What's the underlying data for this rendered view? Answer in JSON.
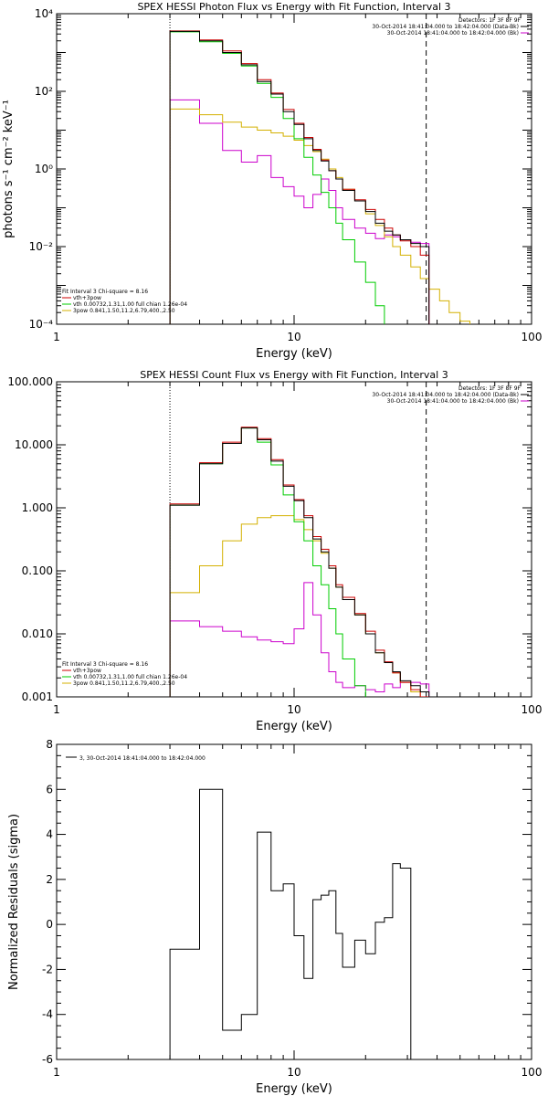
{
  "colors": {
    "axes": "#000000",
    "data": "#000000",
    "thermal": "#00cc00",
    "nonthermal": "#d4b000",
    "total": "#cc0000",
    "background": "#cc00cc"
  },
  "chart_data": [
    {
      "type": "line",
      "title": "SPEX HESSI Photon Flux vs Energy with Fit Function, Interval 3",
      "xlabel": "Energy (keV)",
      "ylabel": "photons s⁻¹ cm⁻² keV⁻¹",
      "xscale": "log",
      "yscale": "log",
      "xlim": [
        1,
        100
      ],
      "ylim": [
        0.0001,
        10000
      ],
      "xticks": [
        {
          "v": 1,
          "label": "1"
        },
        {
          "v": 10,
          "label": "10"
        },
        {
          "v": 100,
          "label": "100"
        }
      ],
      "yticks": [
        {
          "v": 0.0001,
          "label": "10⁻⁴"
        },
        {
          "v": 0.01,
          "label": "10⁻²"
        },
        {
          "v": 1,
          "label": "10⁰"
        },
        {
          "v": 100,
          "label": "10²"
        },
        {
          "v": 10000,
          "label": "10⁴"
        }
      ],
      "vlines": {
        "dotted": 3,
        "dashed": 36
      },
      "bin_edges": [
        3,
        4,
        5,
        6,
        7,
        8,
        9,
        10,
        11,
        12,
        13,
        14,
        15,
        16,
        18,
        20,
        22,
        24,
        26,
        28,
        31,
        34,
        37,
        41,
        45,
        50,
        55,
        60
      ],
      "legend_top": {
        "header": "Detectors: 1F 3F 8F 9F",
        "entries": [
          {
            "label": "30-Oct-2014 18:41:04.000 to 18:42:04.000 (Data-Bk)",
            "color": "#000000"
          },
          {
            "label": "30-Oct-2014 18:41:04.000 to 18:42:04.000 (Bk)",
            "color": "#cc00cc"
          }
        ]
      },
      "legend_bottom": {
        "header": "Fit Interval 3   Chi-square = 8.16",
        "entries": [
          {
            "label": "vth+3pow",
            "color": "#cc0000"
          },
          {
            "label": "vth 0.00732,1.31,1.00   full chian 1.26e-04",
            "color": "#00cc00"
          },
          {
            "label": "3pow 0.841,1.50,11.2,6.79,400.,2.50",
            "color": "#d4b000"
          }
        ]
      },
      "series": [
        {
          "name": "Data-Bk",
          "color": "#000000",
          "values": [
            3500,
            2000,
            1000,
            480,
            180,
            85,
            30,
            14,
            6,
            3,
            1.6,
            0.9,
            0.55,
            0.28,
            0.15,
            0.08,
            0.04,
            0.025,
            0.02,
            0.015,
            0.012,
            0.01
          ]
        },
        {
          "name": "vth+3pow",
          "color": "#cc0000",
          "values": [
            3600,
            2100,
            1100,
            520,
            200,
            90,
            34,
            15,
            6.5,
            3.2,
            1.7,
            0.9,
            0.55,
            0.3,
            0.16,
            0.09,
            0.05,
            0.03,
            0.02,
            0.014,
            0.01,
            0.006
          ]
        },
        {
          "name": "vth",
          "color": "#00cc00",
          "values": [
            3400,
            1900,
            950,
            450,
            160,
            70,
            20,
            6,
            2,
            0.7,
            0.25,
            0.1,
            0.04,
            0.015,
            0.004,
            0.0012,
            0.0003,
            8e-05
          ]
        },
        {
          "name": "3pow",
          "color": "#d4b000",
          "values": [
            35,
            25,
            16,
            12,
            10,
            8.5,
            7,
            5.5,
            4,
            2.8,
            1.8,
            1,
            0.6,
            0.3,
            0.15,
            0.07,
            0.035,
            0.018,
            0.01,
            0.006,
            0.003,
            0.0015,
            0.0008,
            0.0004,
            0.0002,
            0.00012,
            7e-05
          ]
        },
        {
          "name": "Bk",
          "color": "#cc00cc",
          "values": [
            60,
            15,
            3,
            1.5,
            2.2,
            0.6,
            0.35,
            0.2,
            0.1,
            0.22,
            0.55,
            0.28,
            0.1,
            0.05,
            0.03,
            0.022,
            0.016,
            0.02,
            0.018,
            0.015,
            0.013,
            0.012
          ]
        }
      ]
    },
    {
      "type": "line",
      "title": "SPEX HESSI Count Flux vs Energy with Fit Function, Interval 3",
      "xlabel": "Energy (keV)",
      "ylabel": "",
      "xscale": "log",
      "yscale": "log",
      "xlim": [
        1,
        100
      ],
      "ylim": [
        0.001,
        100
      ],
      "xticks": [
        {
          "v": 1,
          "label": "1"
        },
        {
          "v": 10,
          "label": "10"
        },
        {
          "v": 100,
          "label": "100"
        }
      ],
      "yticks": [
        {
          "v": 0.001,
          "label": "0.001"
        },
        {
          "v": 0.01,
          "label": "0.010"
        },
        {
          "v": 0.1,
          "label": "0.100"
        },
        {
          "v": 1,
          "label": "1.000"
        },
        {
          "v": 10,
          "label": "10.000"
        },
        {
          "v": 100,
          "label": "100.000"
        }
      ],
      "vlines": {
        "dotted": 3,
        "dashed": 36
      },
      "bin_edges": [
        3,
        4,
        5,
        6,
        7,
        8,
        9,
        10,
        11,
        12,
        13,
        14,
        15,
        16,
        18,
        20,
        22,
        24,
        26,
        28,
        31,
        34,
        37
      ],
      "legend_top": {
        "header": "Detectors: 1F 3F 8F 9F",
        "entries": [
          {
            "label": "30-Oct-2014 18:41:04.000 to 18:42:04.000 (Data-Bk)",
            "color": "#000000"
          },
          {
            "label": "30-Oct-2014 18:41:04.000 to 18:42:04.000 (Bk)",
            "color": "#cc00cc"
          }
        ]
      },
      "legend_bottom": {
        "header": "Fit Interval 3   Chi-square = 8.16",
        "entries": [
          {
            "label": "vth+3pow",
            "color": "#cc0000"
          },
          {
            "label": "vth 0.00732,1.31,1.00   full chian 1.26e-04",
            "color": "#00cc00"
          },
          {
            "label": "3pow 0.841,1.50,11.2,6.79,400.,2.50",
            "color": "#d4b000"
          }
        ]
      },
      "series": [
        {
          "name": "Data-Bk",
          "color": "#000000",
          "values": [
            1.1,
            5,
            10.5,
            18.5,
            12,
            5.5,
            2.2,
            1.3,
            0.7,
            0.32,
            0.2,
            0.11,
            0.055,
            0.035,
            0.02,
            0.01,
            0.005,
            0.0035,
            0.0025,
            0.0018,
            0.0015,
            0.0012
          ]
        },
        {
          "name": "vth+3pow",
          "color": "#cc0000",
          "values": [
            1.15,
            5.2,
            11,
            19,
            12.5,
            5.8,
            2.3,
            1.35,
            0.75,
            0.35,
            0.22,
            0.12,
            0.06,
            0.038,
            0.021,
            0.011,
            0.0055,
            0.0036,
            0.0024,
            0.0017,
            0.0013,
            0.001
          ]
        },
        {
          "name": "vth",
          "color": "#00cc00",
          "values": [
            1.1,
            5,
            10.5,
            18.5,
            11,
            4.8,
            1.6,
            0.6,
            0.3,
            0.12,
            0.06,
            0.025,
            0.01,
            0.004,
            0.0015,
            0.0008
          ]
        },
        {
          "name": "3pow",
          "color": "#d4b000",
          "values": [
            0.045,
            0.12,
            0.3,
            0.55,
            0.7,
            0.75,
            0.75,
            0.65,
            0.45,
            0.3,
            0.19,
            0.11,
            0.055,
            0.035,
            0.02,
            0.01,
            0.005,
            0.0035,
            0.0024,
            0.0017,
            0.0012,
            0.0009
          ]
        },
        {
          "name": "Bk",
          "color": "#cc00cc",
          "values": [
            0.016,
            0.013,
            0.011,
            0.009,
            0.008,
            0.0075,
            0.007,
            0.012,
            0.065,
            0.02,
            0.005,
            0.0025,
            0.0017,
            0.0014,
            0.0015,
            0.0013,
            0.0012,
            0.0016,
            0.0014,
            0.0017,
            0.0017,
            0.0016
          ]
        }
      ]
    },
    {
      "type": "line",
      "title": "",
      "xlabel": "Energy (keV)",
      "ylabel": "Normalized Residuals (sigma)",
      "xscale": "log",
      "yscale": "linear",
      "xlim": [
        1,
        100
      ],
      "ylim": [
        -6,
        8
      ],
      "xticks": [
        {
          "v": 1,
          "label": "1"
        },
        {
          "v": 10,
          "label": "10"
        },
        {
          "v": 100,
          "label": "100"
        }
      ],
      "yticks": [
        {
          "v": -6,
          "label": "-6"
        },
        {
          "v": -4,
          "label": "-4"
        },
        {
          "v": -2,
          "label": "-2"
        },
        {
          "v": 0,
          "label": "0"
        },
        {
          "v": 2,
          "label": "2"
        },
        {
          "v": 4,
          "label": "4"
        },
        {
          "v": 6,
          "label": "6"
        },
        {
          "v": 8,
          "label": "8"
        }
      ],
      "bin_edges": [
        3,
        4,
        5,
        6,
        7,
        8,
        9,
        10,
        11,
        12,
        13,
        14,
        15,
        16,
        18,
        20,
        22,
        24,
        26,
        28,
        31,
        34,
        37
      ],
      "legend_top": {
        "entries": [
          {
            "label": "3, 30-Oct-2014 18:41:04.000 to 18:42:04.000",
            "color": "#000000"
          }
        ]
      },
      "series": [
        {
          "name": "3, 30-Oct-2014 18:41:04.000 to 18:42:04.000",
          "color": "#000000",
          "values": [
            -1.1,
            6,
            -4.7,
            -4,
            4.1,
            1.5,
            1.8,
            -0.5,
            -2.4,
            1.1,
            1.3,
            1.5,
            -0.4,
            -1.9,
            -0.7,
            -1.3,
            0.1,
            0.3,
            2.7,
            2.5
          ]
        }
      ]
    }
  ]
}
